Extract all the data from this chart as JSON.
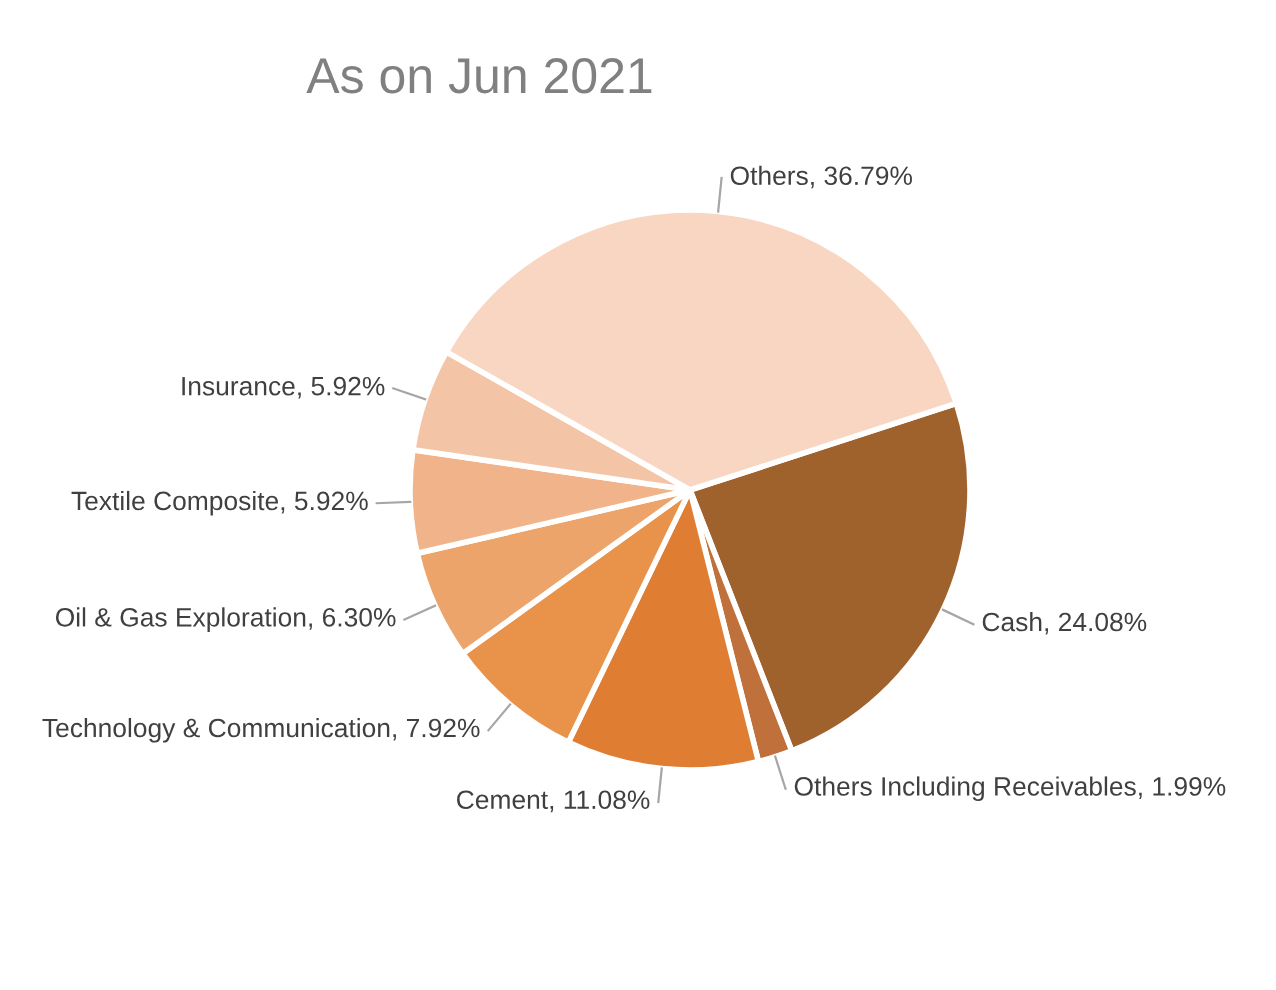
{
  "chart_data": {
    "type": "pie",
    "title": "As on Jun 2021",
    "categories": [
      "Cash",
      "Others Including Receivables",
      "Cement",
      "Technology & Communication",
      "Oil & Gas Exploration",
      "Textile Composite",
      "Insurance",
      "Others"
    ],
    "values": [
      24.08,
      1.99,
      11.08,
      7.92,
      6.3,
      5.92,
      5.92,
      36.79
    ],
    "colors": [
      "#a0622d",
      "#c0703a",
      "#df7d33",
      "#e8924a",
      "#eda46a",
      "#f1b48a",
      "#f4c4a6",
      "#f8d6c2"
    ],
    "value_labels": [
      "24.08%",
      "1.99%",
      "11.08%",
      "7.92%",
      "6.30%",
      "5.92%",
      "5.92%",
      "36.79%"
    ]
  }
}
